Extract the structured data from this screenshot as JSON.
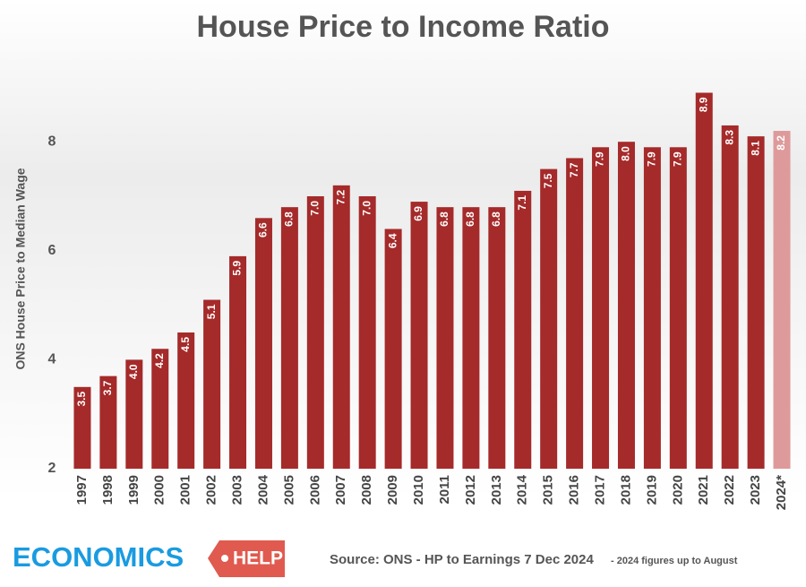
{
  "chart_data": {
    "type": "bar",
    "title": "House Price to Income Ratio",
    "y_label": "ONS House Price to Median Wage",
    "categories": [
      "1997",
      "1998",
      "1999",
      "2000",
      "2001",
      "2002",
      "2003",
      "2004",
      "2005",
      "2006",
      "2007",
      "2008",
      "2009",
      "2010",
      "2011",
      "2012",
      "2013",
      "2014",
      "2015",
      "2016",
      "2017",
      "2018",
      "2019",
      "2020",
      "2021",
      "2022",
      "2023",
      "2024*"
    ],
    "values": [
      3.5,
      3.7,
      4.0,
      4.2,
      4.5,
      5.1,
      5.9,
      6.6,
      6.8,
      7.0,
      7.2,
      7.0,
      6.4,
      6.9,
      6.8,
      6.8,
      6.8,
      7.1,
      7.5,
      7.7,
      7.9,
      8.0,
      7.9,
      7.9,
      8.9,
      8.3,
      8.1,
      8.2
    ],
    "value_labels": [
      "3.5",
      "3.7",
      "4.0",
      "4.2",
      "4.5",
      "5.1",
      "5.9",
      "6.6",
      "6.8",
      "7.0",
      "7.2",
      "7.0",
      "6.4",
      "6.9",
      "6.8",
      "6.8",
      "6.8",
      "7.1",
      "7.5",
      "7.7",
      "7.9",
      "8.0",
      "7.9",
      "7.9",
      "8.9",
      "8.3",
      "8.1",
      "8.2"
    ],
    "colors": [
      "#a52a2a",
      "#a52a2a",
      "#a52a2a",
      "#a52a2a",
      "#a52a2a",
      "#a52a2a",
      "#a52a2a",
      "#a52a2a",
      "#a52a2a",
      "#a52a2a",
      "#a52a2a",
      "#a52a2a",
      "#a52a2a",
      "#a52a2a",
      "#a52a2a",
      "#a52a2a",
      "#a52a2a",
      "#a52a2a",
      "#a52a2a",
      "#a52a2a",
      "#a52a2a",
      "#a52a2a",
      "#a52a2a",
      "#a52a2a",
      "#a52a2a",
      "#a52a2a",
      "#a52a2a",
      "#de9a9a"
    ],
    "ylim": [
      2,
      9.5
    ],
    "yticks": [
      2,
      4,
      6,
      8
    ],
    "source": "Source: ONS - HP to Earnings 7 Dec 2024",
    "source_note": "- 2024 figures up to August"
  },
  "logo": {
    "word": "ECONOMICS",
    "tag": "HELP"
  }
}
